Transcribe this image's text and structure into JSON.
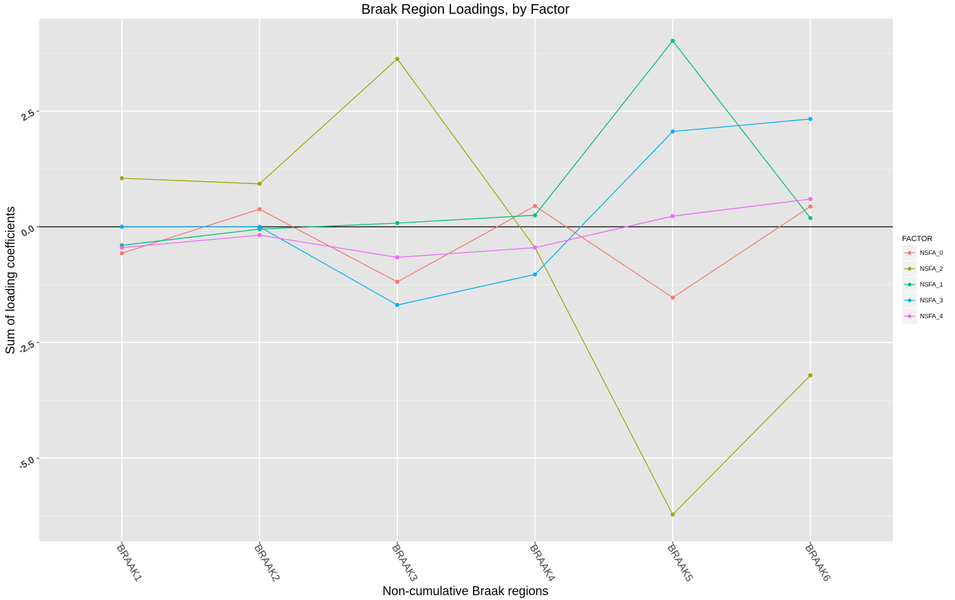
{
  "chart_data": {
    "type": "line",
    "title": "Braak Region Loadings, by Factor",
    "xlabel": "Non-cumulative Braak regions",
    "ylabel": "Sum of loading coefficients",
    "categories": [
      "BRAAK1",
      "BRAAK2",
      "BRAAK3",
      "BRAAK4",
      "BRAAK5",
      "BRAAK6"
    ],
    "ylim": [
      -6.8,
      4.5
    ],
    "yticks": [
      {
        "value": 2.5,
        "label": "2.5"
      },
      {
        "value": 0.0,
        "label": "0.0"
      },
      {
        "value": -2.5,
        "label": "-2.5"
      },
      {
        "value": -5.0,
        "label": "-5.0"
      }
    ],
    "grid": true,
    "hline": 0,
    "legend": {
      "title": "FACTOR",
      "position": "right"
    },
    "series": [
      {
        "name": "NSFA_0",
        "color": "#F8766D",
        "values": [
          -0.57,
          0.38,
          -1.19,
          0.45,
          -1.53,
          0.44
        ]
      },
      {
        "name": "NSFA_2",
        "color": "#A3A500",
        "values": [
          1.05,
          0.93,
          3.63,
          -0.45,
          -6.22,
          -3.21
        ]
      },
      {
        "name": "NSFA_1",
        "color": "#00BF7D",
        "values": [
          -0.4,
          -0.05,
          0.08,
          0.25,
          4.02,
          0.19
        ]
      },
      {
        "name": "NSFA_3",
        "color": "#00B0F6",
        "values": [
          0.0,
          0.0,
          -1.69,
          -1.03,
          2.06,
          2.33
        ]
      },
      {
        "name": "NSFA_4",
        "color": "#E76BF3",
        "values": [
          -0.45,
          -0.18,
          -0.66,
          -0.45,
          0.23,
          0.6
        ]
      }
    ]
  }
}
